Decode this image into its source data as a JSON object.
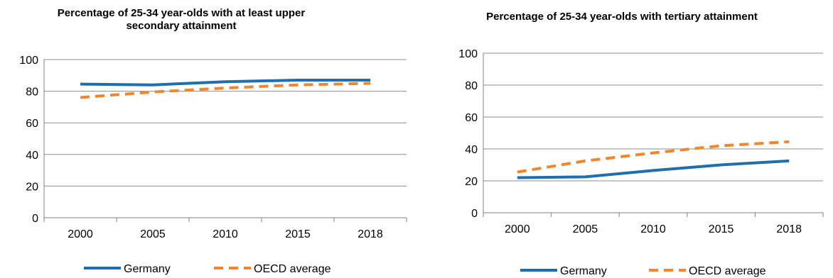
{
  "colors": {
    "germany": "#1f6fae",
    "oecd": "#f0862d",
    "grid": "#8c8c8c",
    "axis": "#808080"
  },
  "chart_data": [
    {
      "type": "line",
      "title": "Percentage of 25-34 year-olds with at least upper secondary attainment",
      "xlabel": "",
      "ylabel": "",
      "categories": [
        "2000",
        "2005",
        "2010",
        "2015",
        "2018"
      ],
      "ylim": [
        0,
        100
      ],
      "yticks": [
        0,
        20,
        40,
        60,
        80,
        100
      ],
      "grid": true,
      "legend": "bottom",
      "series": [
        {
          "name": "Germany",
          "style": "solid",
          "values": [
            84.5,
            84,
            86,
            87,
            87
          ]
        },
        {
          "name": "OECD average",
          "style": "dashed",
          "values": [
            76,
            79.5,
            82,
            84,
            85
          ]
        }
      ]
    },
    {
      "type": "line",
      "title": "Percentage of 25-34 year-olds with tertiary attainment",
      "xlabel": "",
      "ylabel": "",
      "categories": [
        "2000",
        "2005",
        "2010",
        "2015",
        "2018"
      ],
      "ylim": [
        0,
        100
      ],
      "yticks": [
        0,
        20,
        40,
        60,
        80,
        100
      ],
      "grid": true,
      "legend": "bottom",
      "series": [
        {
          "name": "Germany",
          "style": "solid",
          "values": [
            22,
            22.5,
            26.5,
            30,
            32.5
          ]
        },
        {
          "name": "OECD average",
          "style": "dashed",
          "values": [
            25.5,
            32.5,
            37.5,
            42,
            44.5
          ]
        }
      ]
    }
  ]
}
